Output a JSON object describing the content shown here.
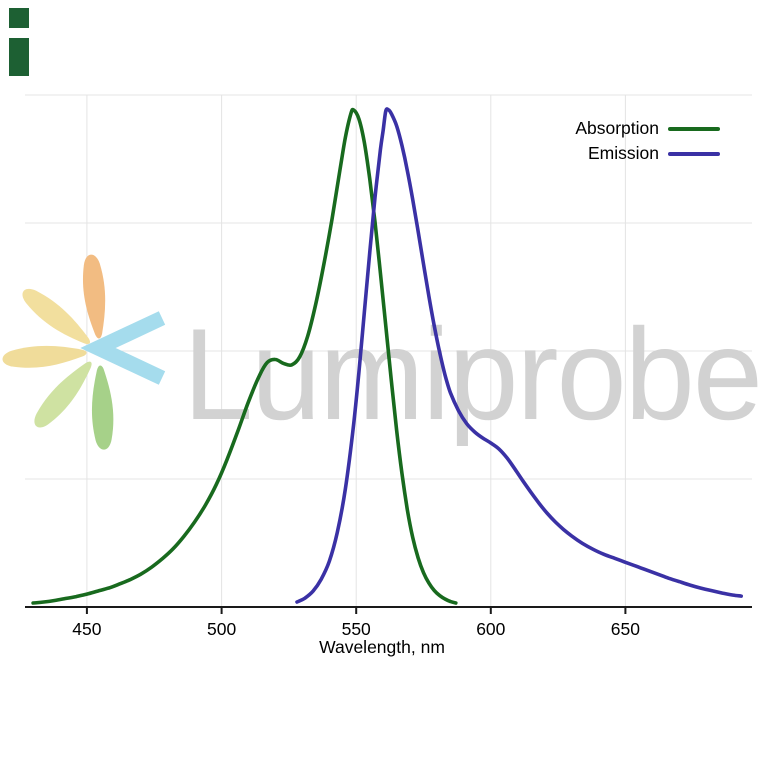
{
  "watermark": {
    "text": "Lumiprobe",
    "text_color": "#d2d2d2",
    "logo_ray_colors": [
      "#f2bc82",
      "#f2df9e",
      "#f0dc9a",
      "#cfe2a2",
      "#a6d189"
    ],
    "logo_chevron_color": "#a5dced"
  },
  "decor": {
    "corner_mark_color": "#1d6033"
  },
  "chart_data": {
    "type": "line",
    "title": "",
    "xlabel": "Wavelength, nm",
    "ylabel": "",
    "xlim": [
      427,
      697
    ],
    "ylim": [
      0,
      1.03
    ],
    "xticks": [
      450,
      500,
      550,
      600,
      650
    ],
    "grid": true,
    "grid_color": "#e4e4e4",
    "horizontal_grid_divisions": 4,
    "axis_color": "#1a1a1a",
    "tick_label_color": "#000000",
    "legend_position": "top-right",
    "series": [
      {
        "name": "Absorption",
        "color": "#186a1e",
        "points": [
          [
            430,
            0.008
          ],
          [
            434,
            0.01
          ],
          [
            438,
            0.013
          ],
          [
            442,
            0.017
          ],
          [
            446,
            0.021
          ],
          [
            450,
            0.026
          ],
          [
            454,
            0.032
          ],
          [
            458,
            0.038
          ],
          [
            462,
            0.046
          ],
          [
            466,
            0.055
          ],
          [
            470,
            0.066
          ],
          [
            474,
            0.08
          ],
          [
            478,
            0.097
          ],
          [
            482,
            0.117
          ],
          [
            486,
            0.142
          ],
          [
            490,
            0.171
          ],
          [
            494,
            0.205
          ],
          [
            498,
            0.246
          ],
          [
            502,
            0.296
          ],
          [
            506,
            0.353
          ],
          [
            510,
            0.413
          ],
          [
            514,
            0.465
          ],
          [
            517,
            0.492
          ],
          [
            520,
            0.498
          ],
          [
            523,
            0.49
          ],
          [
            526,
            0.487
          ],
          [
            529,
            0.503
          ],
          [
            532,
            0.545
          ],
          [
            535,
            0.61
          ],
          [
            538,
            0.69
          ],
          [
            541,
            0.78
          ],
          [
            544,
            0.88
          ],
          [
            546,
            0.945
          ],
          [
            548,
            0.992
          ],
          [
            549,
            1.0
          ],
          [
            551,
            0.982
          ],
          [
            553,
            0.935
          ],
          [
            555,
            0.862
          ],
          [
            557,
            0.775
          ],
          [
            559,
            0.672
          ],
          [
            561,
            0.565
          ],
          [
            563,
            0.458
          ],
          [
            565,
            0.356
          ],
          [
            567,
            0.268
          ],
          [
            569,
            0.196
          ],
          [
            571,
            0.14
          ],
          [
            573,
            0.099
          ],
          [
            575,
            0.069
          ],
          [
            577,
            0.048
          ],
          [
            579,
            0.033
          ],
          [
            581,
            0.023
          ],
          [
            583,
            0.016
          ],
          [
            585,
            0.011
          ],
          [
            587,
            0.008
          ]
        ]
      },
      {
        "name": "Emission",
        "color": "#3a31a5",
        "points": [
          [
            528,
            0.01
          ],
          [
            531,
            0.018
          ],
          [
            534,
            0.032
          ],
          [
            537,
            0.056
          ],
          [
            540,
            0.092
          ],
          [
            543,
            0.15
          ],
          [
            546,
            0.238
          ],
          [
            549,
            0.365
          ],
          [
            551,
            0.472
          ],
          [
            553,
            0.592
          ],
          [
            555,
            0.712
          ],
          [
            557,
            0.824
          ],
          [
            559,
            0.92
          ],
          [
            560,
            0.958
          ],
          [
            561,
            0.998
          ],
          [
            562,
            1.0
          ],
          [
            563,
            0.993
          ],
          [
            565,
            0.968
          ],
          [
            567,
            0.928
          ],
          [
            569,
            0.878
          ],
          [
            571,
            0.82
          ],
          [
            573,
            0.756
          ],
          [
            575,
            0.69
          ],
          [
            577,
            0.625
          ],
          [
            579,
            0.565
          ],
          [
            581,
            0.512
          ],
          [
            583,
            0.467
          ],
          [
            585,
            0.431
          ],
          [
            588,
            0.395
          ],
          [
            591,
            0.369
          ],
          [
            594,
            0.352
          ],
          [
            597,
            0.34
          ],
          [
            600,
            0.33
          ],
          [
            603,
            0.318
          ],
          [
            606,
            0.3
          ],
          [
            609,
            0.277
          ],
          [
            612,
            0.253
          ],
          [
            615,
            0.23
          ],
          [
            618,
            0.208
          ],
          [
            621,
            0.188
          ],
          [
            624,
            0.171
          ],
          [
            627,
            0.156
          ],
          [
            630,
            0.143
          ],
          [
            634,
            0.128
          ],
          [
            638,
            0.116
          ],
          [
            642,
            0.106
          ],
          [
            646,
            0.098
          ],
          [
            650,
            0.09
          ],
          [
            654,
            0.082
          ],
          [
            658,
            0.074
          ],
          [
            662,
            0.066
          ],
          [
            666,
            0.058
          ],
          [
            670,
            0.051
          ],
          [
            674,
            0.044
          ],
          [
            678,
            0.038
          ],
          [
            682,
            0.033
          ],
          [
            686,
            0.028
          ],
          [
            690,
            0.024
          ],
          [
            693,
            0.022
          ]
        ]
      }
    ]
  }
}
